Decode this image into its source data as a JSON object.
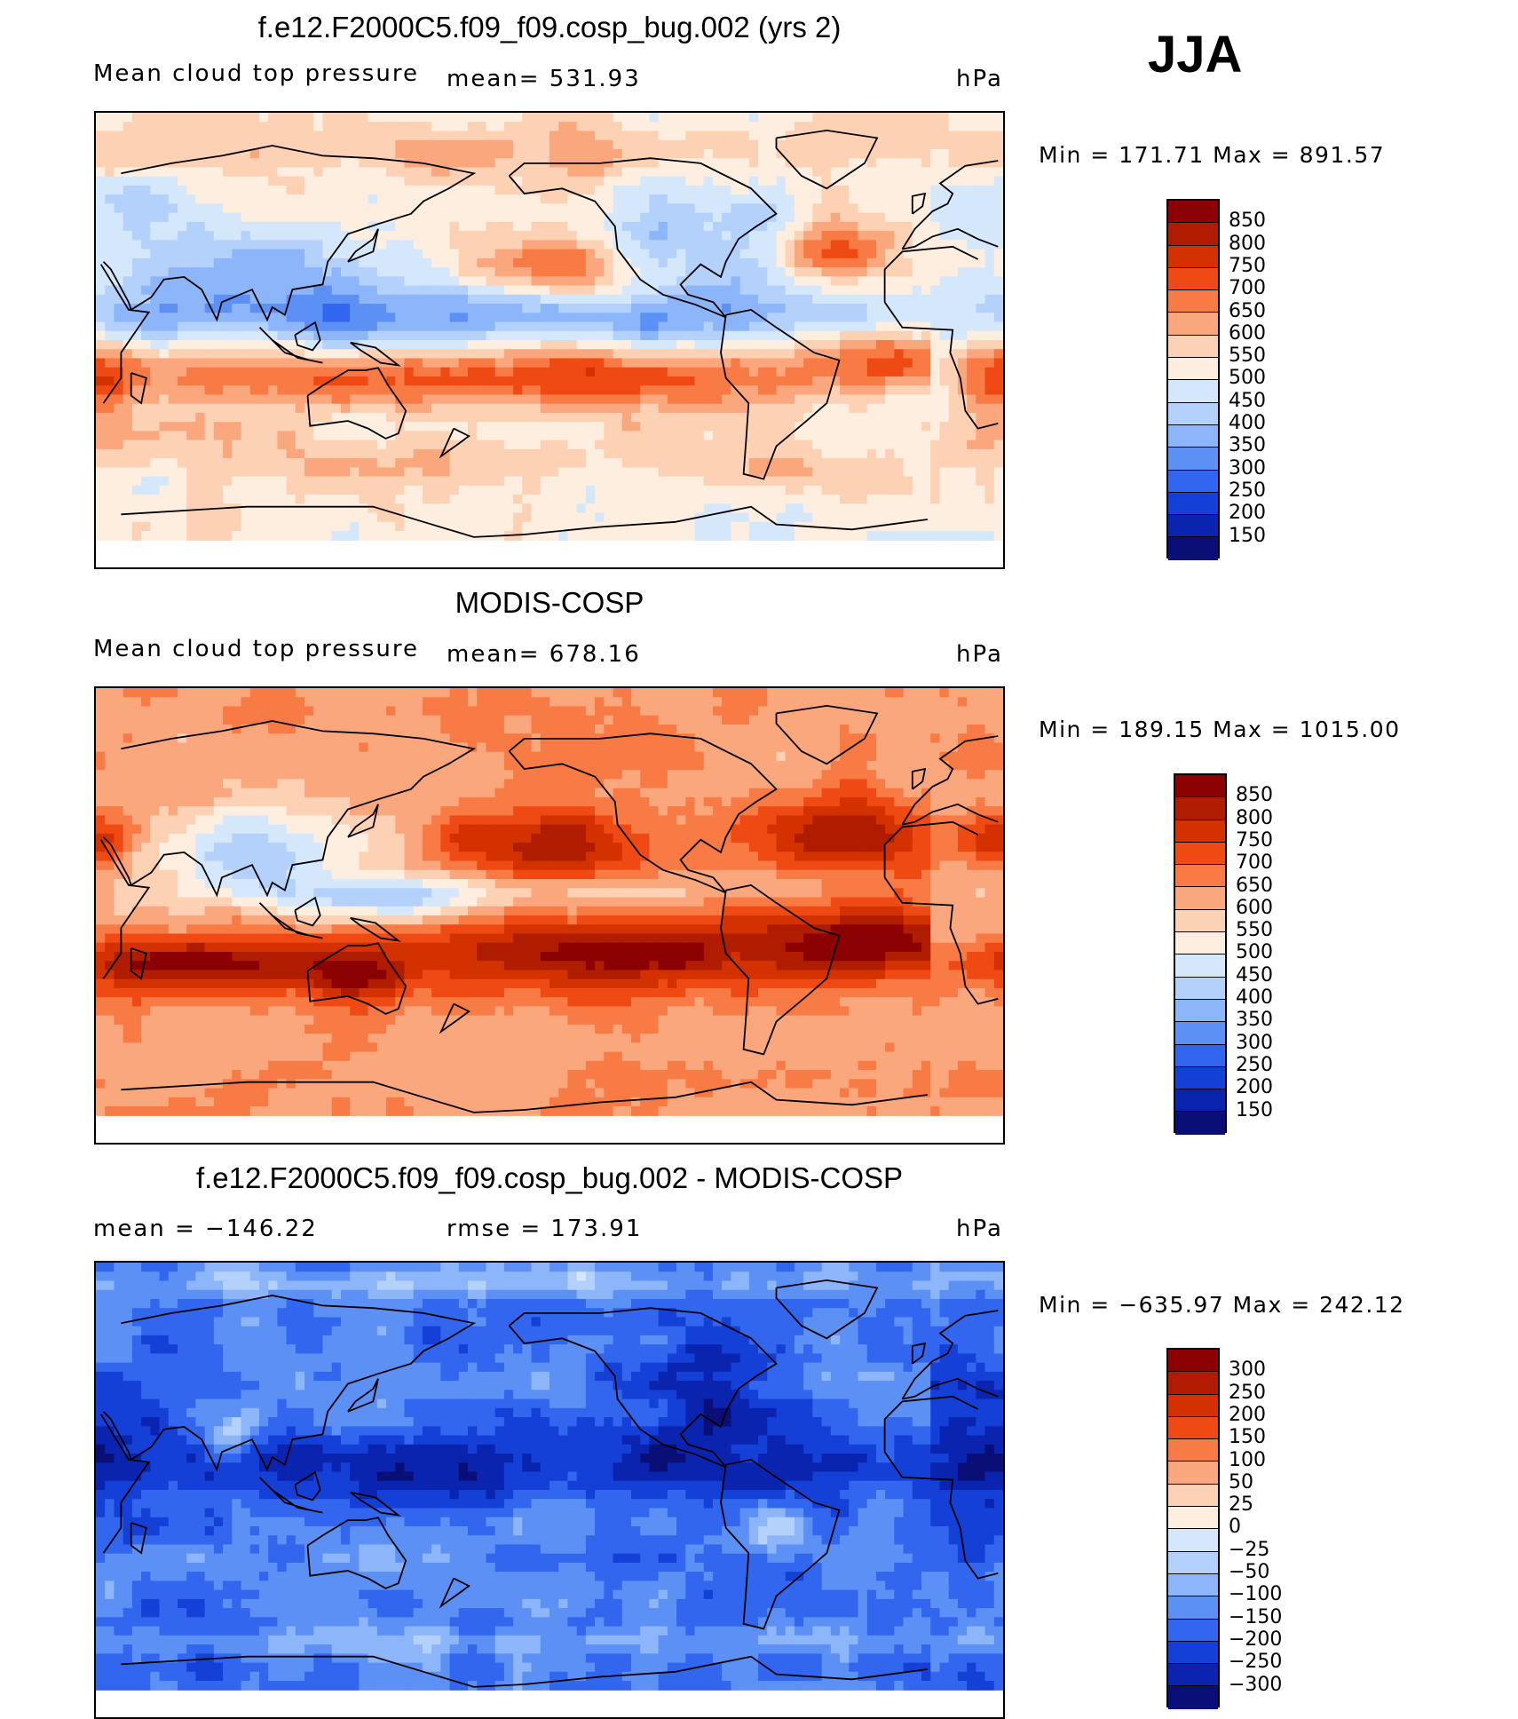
{
  "season": "JJA",
  "panels": [
    {
      "title": "f.e12.F2000C5.f09_f09.cosp_bug.002 (yrs 2)",
      "left_label": "Mean cloud top pressure",
      "center_label": "mean= 531.93",
      "units": "hPa",
      "minmax": "Min = 171.71 Max = 891.57",
      "field": "model",
      "colorbar": {
        "labels": [
          "850",
          "800",
          "750",
          "700",
          "650",
          "600",
          "550",
          "500",
          "450",
          "400",
          "350",
          "300",
          "250",
          "200",
          "150"
        ],
        "colors": [
          "#8b0000",
          "#b01c00",
          "#d43100",
          "#f04a14",
          "#f87a44",
          "#fba77e",
          "#fdd1b4",
          "#fdeee0",
          "#d5e8fb",
          "#b3d1fb",
          "#8db6fa",
          "#5d90f5",
          "#3266ee",
          "#1440d8",
          "#0a24b0",
          "#0a0f78"
        ]
      }
    },
    {
      "title": "MODIS-COSP",
      "left_label": "Mean cloud top pressure",
      "center_label": "mean= 678.16",
      "units": "hPa",
      "minmax": "Min = 189.15 Max = 1015.00",
      "field": "obs",
      "colorbar": {
        "labels": [
          "850",
          "800",
          "750",
          "700",
          "650",
          "600",
          "550",
          "500",
          "450",
          "400",
          "350",
          "300",
          "250",
          "200",
          "150"
        ],
        "colors": [
          "#8b0000",
          "#b01c00",
          "#d43100",
          "#f04a14",
          "#f87a44",
          "#fba77e",
          "#fdd1b4",
          "#fdeee0",
          "#d5e8fb",
          "#b3d1fb",
          "#8db6fa",
          "#5d90f5",
          "#3266ee",
          "#1440d8",
          "#0a24b0",
          "#0a0f78"
        ]
      }
    },
    {
      "title": "f.e12.F2000C5.f09_f09.cosp_bug.002 - MODIS-COSP",
      "left_label": "mean = −146.22",
      "center_label": "rmse = 173.91",
      "units": "hPa",
      "minmax": "Min = −635.97 Max = 242.12",
      "field": "diff",
      "colorbar": {
        "labels": [
          "300",
          "250",
          "200",
          "150",
          "100",
          "50",
          "25",
          "0",
          "−25",
          "−50",
          "−100",
          "−150",
          "−200",
          "−250",
          "−300"
        ],
        "colors": [
          "#8b0000",
          "#b01c00",
          "#d43100",
          "#f04a14",
          "#f87a44",
          "#fba77e",
          "#fdd1b4",
          "#fdeee0",
          "#d5e8fb",
          "#b3d1fb",
          "#8db6fa",
          "#5d90f5",
          "#3266ee",
          "#1440d8",
          "#0a24b0",
          "#0a0f78"
        ]
      }
    }
  ]
}
